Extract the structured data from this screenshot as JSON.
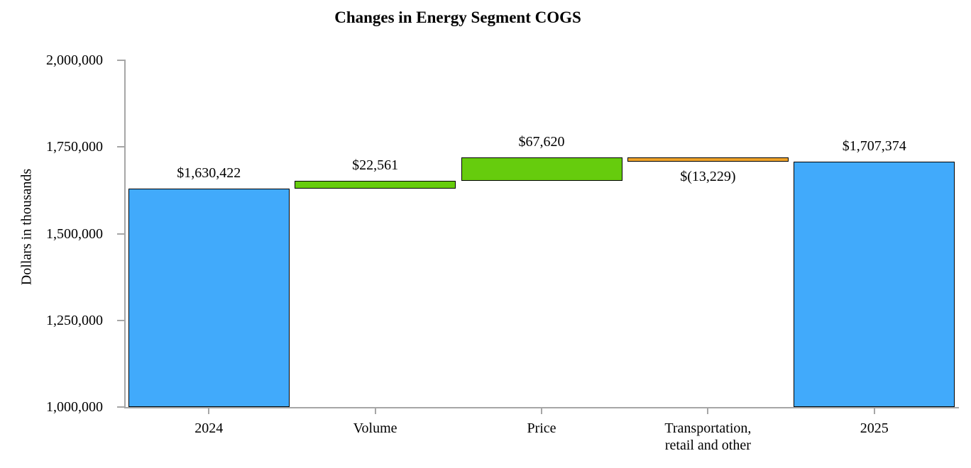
{
  "chart_data": {
    "type": "waterfall",
    "title": "Changes in Energy Segment COGS",
    "ylabel": "Dollars in thousands",
    "xlabel": "",
    "y_axis": {
      "min": 1000000,
      "max": 2000000,
      "tick_interval": 250000,
      "tick_values": [
        2000000,
        1750000,
        1500000,
        1250000,
        1000000
      ],
      "tick_labels": [
        "2,000,000",
        "1,750,000",
        "1,500,000",
        "1,250,000",
        "1,000,000"
      ]
    },
    "categories": [
      "2024",
      "Volume",
      "Price",
      "Transportation,\nretail and other",
      "2025"
    ],
    "bars": [
      {
        "category": "2024",
        "kind": "total",
        "start": 1000000,
        "end": 1630422,
        "value": 1630422,
        "value_label": "$1,630,422",
        "label_position": "above"
      },
      {
        "category": "Volume",
        "kind": "increase",
        "start": 1630422,
        "end": 1652983,
        "value": 22561,
        "value_label": "$22,561",
        "label_position": "above"
      },
      {
        "category": "Price",
        "kind": "increase",
        "start": 1652983,
        "end": 1720603,
        "value": 67620,
        "value_label": "$67,620",
        "label_position": "above"
      },
      {
        "category": "Transportation,\nretail and other",
        "kind": "decrease",
        "start": 1720603,
        "end": 1707374,
        "value": -13229,
        "value_label": "$(13,229)",
        "label_position": "below"
      },
      {
        "category": "2025",
        "kind": "total",
        "start": 1000000,
        "end": 1707374,
        "value": 1707374,
        "value_label": "$1,707,374",
        "label_position": "above"
      }
    ],
    "colors": {
      "total": "#41aafb",
      "increase": "#66cc0d",
      "decrease": "#efa32b",
      "bar_border": "#000000",
      "axis": "#a6a6a6"
    },
    "legend": "none",
    "grid": "off"
  }
}
